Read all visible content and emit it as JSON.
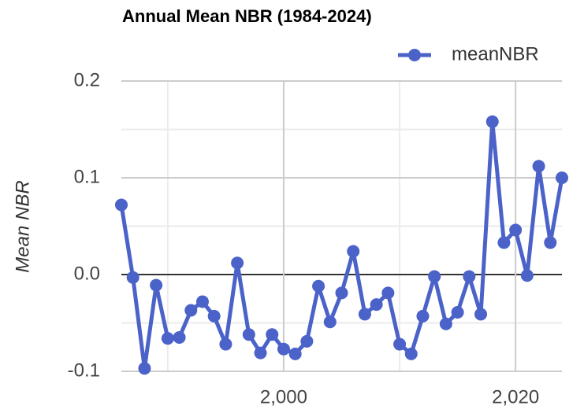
{
  "chart_data": {
    "type": "line",
    "title": "Annual Mean NBR (1984-2024)",
    "y_label": "Mean NBR",
    "x": [
      1986,
      1987,
      1988,
      1989,
      1990,
      1991,
      1992,
      1993,
      1994,
      1995,
      1996,
      1997,
      1998,
      1999,
      2000,
      2001,
      2002,
      2003,
      2004,
      2005,
      2006,
      2007,
      2008,
      2009,
      2010,
      2011,
      2012,
      2013,
      2014,
      2015,
      2016,
      2017,
      2018,
      2019,
      2020,
      2021,
      2022,
      2023,
      2024
    ],
    "series": [
      {
        "name": "meanNBR",
        "color": "#4b62c9",
        "values": [
          0.072,
          -0.003,
          -0.097,
          -0.011,
          -0.066,
          -0.065,
          -0.037,
          -0.028,
          -0.043,
          -0.072,
          0.012,
          -0.062,
          -0.081,
          -0.062,
          -0.077,
          -0.082,
          -0.069,
          -0.012,
          -0.049,
          -0.019,
          0.024,
          -0.041,
          -0.031,
          -0.019,
          -0.072,
          -0.082,
          -0.043,
          -0.002,
          -0.051,
          -0.039,
          -0.002,
          -0.041,
          0.158,
          0.033,
          0.046,
          -0.001,
          0.112,
          0.033,
          0.1
        ]
      }
    ],
    "xlim": [
      1986,
      2024
    ],
    "xticks": [
      {
        "value": 2000,
        "label": "2,000"
      },
      {
        "value": 2020,
        "label": "2,020"
      }
    ],
    "xminorticks": [
      1990,
      2010
    ],
    "ylim": [
      -0.1,
      0.2
    ],
    "yticks": [
      -0.1,
      {
        "value": 0,
        "label": "0.0"
      },
      0.1,
      0.2
    ],
    "yminorticks": [
      -0.05,
      0.05,
      0.15
    ],
    "grid": true,
    "legend": "top-right"
  }
}
